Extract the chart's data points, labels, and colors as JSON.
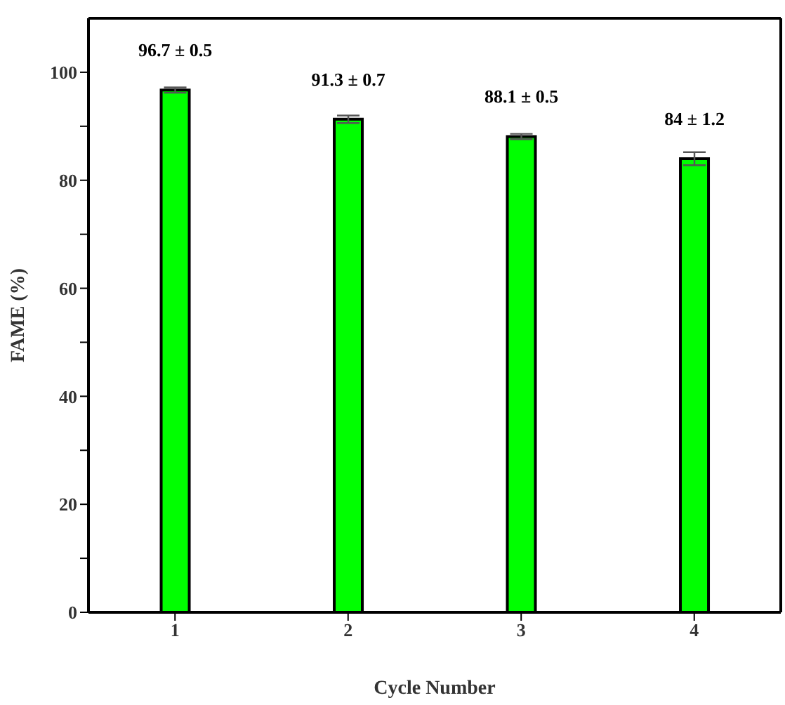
{
  "chart_data": {
    "type": "bar",
    "xlabel": "Cycle Number",
    "ylabel": "FAME (%)",
    "categories": [
      "1",
      "2",
      "3",
      "4"
    ],
    "values": [
      96.7,
      91.3,
      88.1,
      84
    ],
    "errors": [
      0.5,
      0.7,
      0.5,
      1.2
    ],
    "value_labels": [
      "96.7 ± 0.5",
      "91.3 ± 0.7",
      "88.1 ± 0.5",
      "84 ± 1.2"
    ],
    "color": "#00ff00",
    "ylim": [
      0,
      110
    ],
    "yticks": [
      0,
      {
        "value": 10,
        "label": null
      },
      20,
      {
        "value": 30,
        "label": null
      },
      40,
      {
        "value": 50,
        "label": null
      },
      60,
      {
        "value": 70,
        "label": null
      },
      80,
      {
        "value": 90,
        "label": null
      },
      100
    ],
    "grid": false,
    "legend": false
  }
}
